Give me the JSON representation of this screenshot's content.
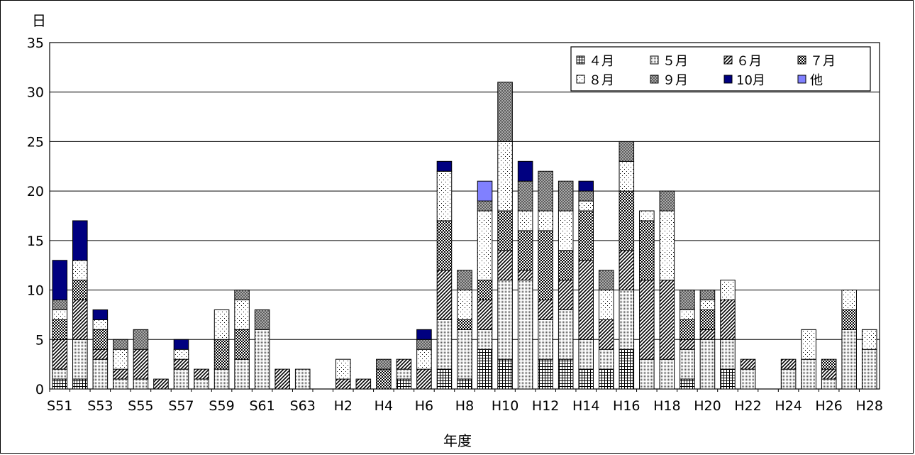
{
  "chart_data": {
    "type": "bar",
    "stacked": true,
    "ylabel": "日",
    "xlabel": "年度",
    "ylim": [
      0,
      35
    ],
    "yticks": [
      0,
      5,
      10,
      15,
      20,
      25,
      30,
      35
    ],
    "grid": true,
    "legend_position": "top-right",
    "categories": [
      "S51",
      "S52",
      "S53",
      "S54",
      "S55",
      "S56",
      "S57",
      "S58",
      "S59",
      "S60",
      "S61",
      "S62",
      "S63",
      "H1",
      "H2",
      "H3",
      "H4",
      "H5",
      "H6",
      "H7",
      "H8",
      "H9",
      "H10",
      "H11",
      "H12",
      "H13",
      "H14",
      "H15",
      "H16",
      "H17",
      "H18",
      "H19",
      "H20",
      "H21",
      "H22",
      "H23",
      "H24",
      "H25",
      "H26",
      "H27",
      "H28"
    ],
    "category_labels": [
      "S51",
      "",
      "S53",
      "",
      "S55",
      "",
      "S57",
      "",
      "S59",
      "",
      "S61",
      "",
      "S63",
      "",
      "H2",
      "",
      "H4",
      "",
      "H6",
      "",
      "H8",
      "",
      "H10",
      "",
      "H12",
      "",
      "H14",
      "",
      "H16",
      "",
      "H18",
      "",
      "H20",
      "",
      "H22",
      "",
      "H24",
      "",
      "H26",
      "",
      "H28"
    ],
    "series": [
      {
        "name": "４月",
        "pattern": "grid",
        "values": [
          1,
          1,
          0,
          0,
          0,
          0,
          0,
          0,
          0,
          0,
          0,
          0,
          0,
          0,
          0,
          0,
          0,
          1,
          0,
          2,
          1,
          4,
          3,
          0,
          3,
          3,
          2,
          2,
          4,
          0,
          0,
          1,
          0,
          2,
          0,
          0,
          0,
          0,
          0,
          0,
          0
        ]
      },
      {
        "name": "５月",
        "pattern": "dense-dots",
        "values": [
          1,
          4,
          3,
          1,
          1,
          0,
          2,
          1,
          2,
          3,
          6,
          0,
          2,
          0,
          0,
          0,
          0,
          1,
          0,
          5,
          5,
          2,
          8,
          11,
          4,
          5,
          3,
          2,
          6,
          3,
          3,
          3,
          5,
          3,
          2,
          0,
          2,
          3,
          1,
          6,
          4
        ]
      },
      {
        "name": "６月",
        "pattern": "diagonal",
        "values": [
          3,
          4,
          1,
          1,
          3,
          1,
          1,
          1,
          0,
          0,
          0,
          2,
          0,
          0,
          1,
          1,
          0,
          1,
          2,
          5,
          0,
          3,
          3,
          1,
          2,
          3,
          8,
          3,
          4,
          8,
          8,
          1,
          1,
          4,
          1,
          0,
          1,
          0,
          1,
          0,
          0
        ]
      },
      {
        "name": "７月",
        "pattern": "checker",
        "values": [
          2,
          2,
          2,
          0,
          0,
          0,
          0,
          0,
          3,
          3,
          0,
          0,
          0,
          0,
          0,
          0,
          2,
          0,
          0,
          5,
          1,
          2,
          4,
          4,
          7,
          3,
          5,
          0,
          6,
          6,
          0,
          2,
          2,
          0,
          0,
          0,
          0,
          0,
          1,
          2,
          0
        ]
      },
      {
        "name": "８月",
        "pattern": "sparse-dots",
        "values": [
          1,
          2,
          1,
          2,
          0,
          0,
          1,
          0,
          3,
          3,
          0,
          0,
          0,
          0,
          2,
          0,
          0,
          0,
          2,
          5,
          3,
          7,
          7,
          2,
          2,
          4,
          1,
          3,
          3,
          1,
          7,
          1,
          1,
          2,
          0,
          0,
          0,
          3,
          0,
          2,
          2
        ]
      },
      {
        "name": "９月",
        "pattern": "crosshatch",
        "values": [
          1,
          0,
          0,
          1,
          2,
          0,
          0,
          0,
          0,
          1,
          2,
          0,
          0,
          0,
          0,
          0,
          1,
          0,
          1,
          0,
          2,
          1,
          6,
          3,
          4,
          3,
          1,
          2,
          2,
          0,
          2,
          2,
          1,
          0,
          0,
          0,
          0,
          0,
          0,
          0,
          0
        ]
      },
      {
        "name": "10月",
        "pattern": "navy",
        "values": [
          4,
          4,
          1,
          0,
          0,
          0,
          1,
          0,
          0,
          0,
          0,
          0,
          0,
          0,
          0,
          0,
          0,
          0,
          1,
          1,
          0,
          0,
          0,
          2,
          0,
          0,
          1,
          0,
          0,
          0,
          0,
          0,
          0,
          0,
          0,
          0,
          0,
          0,
          0,
          0,
          0
        ]
      },
      {
        "name": "他",
        "pattern": "blue",
        "values": [
          0,
          0,
          0,
          0,
          0,
          0,
          0,
          0,
          0,
          0,
          0,
          0,
          0,
          0,
          0,
          0,
          0,
          0,
          0,
          0,
          0,
          2,
          0,
          0,
          0,
          0,
          0,
          0,
          0,
          0,
          0,
          0,
          0,
          0,
          0,
          0,
          0,
          0,
          0,
          0,
          0
        ]
      }
    ]
  }
}
